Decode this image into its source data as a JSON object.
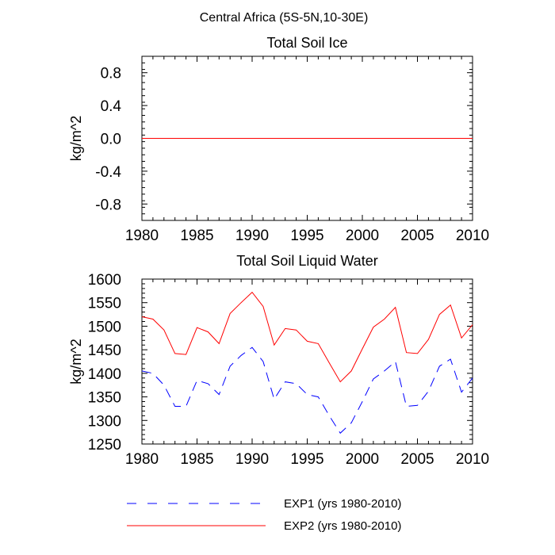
{
  "figure": {
    "title": "Central Africa (5S-5N,10-30E)"
  },
  "legend": [
    {
      "label": "EXP1 (yrs 1980-2010)",
      "color": "#0000ff",
      "style": "dashed"
    },
    {
      "label": "EXP2 (yrs 1980-2010)",
      "color": "#ff0000",
      "style": "solid"
    }
  ],
  "chart_data": [
    {
      "type": "line",
      "title": "Total Soil Ice",
      "xlabel": "",
      "ylabel": "kg/m^2",
      "xlim": [
        1980,
        2010
      ],
      "ylim": [
        -1.0,
        1.0
      ],
      "xticks": [
        1980,
        1985,
        1990,
        1995,
        2000,
        2005,
        2010
      ],
      "yticks": [
        -0.8,
        -0.4,
        0.0,
        0.4,
        0.8
      ],
      "ytick_labels": [
        "-0.8",
        "-0.4",
        "0.0",
        "0.4",
        "0.8"
      ],
      "x": [
        1980,
        1981,
        1982,
        1983,
        1984,
        1985,
        1986,
        1987,
        1988,
        1989,
        1990,
        1991,
        1992,
        1993,
        1994,
        1995,
        1996,
        1997,
        1998,
        1999,
        2000,
        2001,
        2002,
        2003,
        2004,
        2005,
        2006,
        2007,
        2008,
        2009,
        2010
      ],
      "series": [
        {
          "name": "EXP1 (yrs 1980-2010)",
          "color": "#0000ff",
          "style": "dashed",
          "values": [
            0,
            0,
            0,
            0,
            0,
            0,
            0,
            0,
            0,
            0,
            0,
            0,
            0,
            0,
            0,
            0,
            0,
            0,
            0,
            0,
            0,
            0,
            0,
            0,
            0,
            0,
            0,
            0,
            0,
            0,
            0
          ]
        },
        {
          "name": "EXP2 (yrs 1980-2010)",
          "color": "#ff0000",
          "style": "solid",
          "values": [
            0,
            0,
            0,
            0,
            0,
            0,
            0,
            0,
            0,
            0,
            0,
            0,
            0,
            0,
            0,
            0,
            0,
            0,
            0,
            0,
            0,
            0,
            0,
            0,
            0,
            0,
            0,
            0,
            0,
            0,
            0
          ]
        }
      ]
    },
    {
      "type": "line",
      "title": "Total Soil Liquid Water",
      "xlabel": "",
      "ylabel": "kg/m^2",
      "xlim": [
        1980,
        2010
      ],
      "ylim": [
        1250,
        1600
      ],
      "xticks": [
        1980,
        1985,
        1990,
        1995,
        2000,
        2005,
        2010
      ],
      "yticks": [
        1250,
        1300,
        1350,
        1400,
        1450,
        1500,
        1550,
        1600
      ],
      "ytick_labels": [
        "1250",
        "1300",
        "1350",
        "1400",
        "1450",
        "1500",
        "1550",
        "1600"
      ],
      "x": [
        1980,
        1981,
        1982,
        1983,
        1984,
        1985,
        1986,
        1987,
        1988,
        1989,
        1990,
        1991,
        1992,
        1993,
        1994,
        1995,
        1996,
        1997,
        1998,
        1999,
        2000,
        2001,
        2002,
        2003,
        2004,
        2005,
        2006,
        2007,
        2008,
        2009,
        2010
      ],
      "series": [
        {
          "name": "EXP1 (yrs 1980-2010)",
          "color": "#0000ff",
          "style": "dashed",
          "values": [
            1405,
            1400,
            1375,
            1330,
            1330,
            1385,
            1378,
            1355,
            1415,
            1438,
            1455,
            1425,
            1345,
            1382,
            1378,
            1355,
            1350,
            1310,
            1273,
            1295,
            1340,
            1388,
            1405,
            1425,
            1330,
            1332,
            1362,
            1415,
            1430,
            1360,
            1390
          ]
        },
        {
          "name": "EXP2 (yrs 1980-2010)",
          "color": "#ff0000",
          "style": "solid",
          "values": [
            1520,
            1515,
            1492,
            1442,
            1440,
            1497,
            1488,
            1463,
            1527,
            1550,
            1572,
            1542,
            1460,
            1495,
            1492,
            1468,
            1463,
            1422,
            1382,
            1405,
            1452,
            1498,
            1515,
            1540,
            1444,
            1442,
            1472,
            1525,
            1545,
            1475,
            1503
          ]
        }
      ]
    }
  ]
}
